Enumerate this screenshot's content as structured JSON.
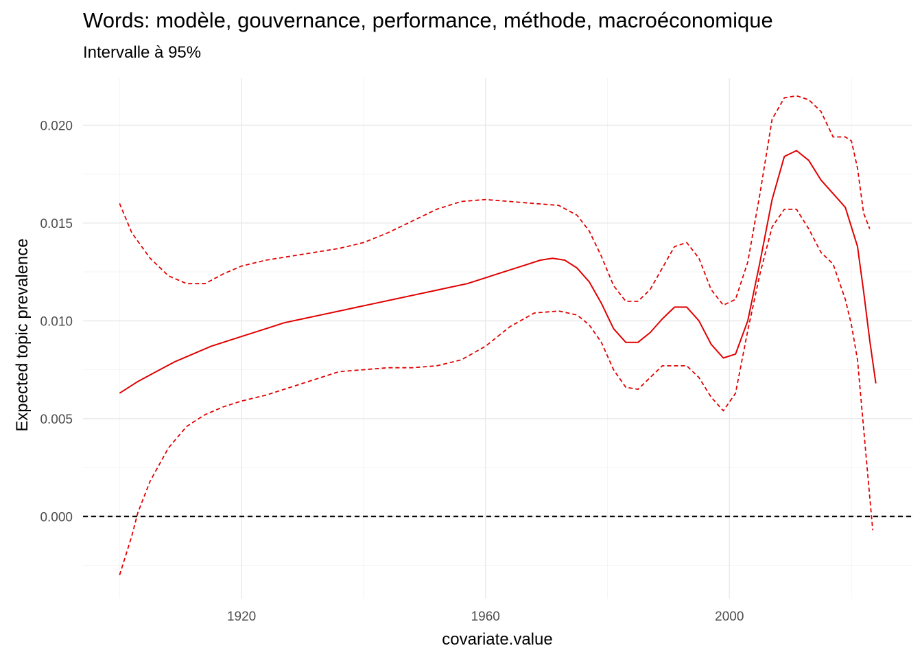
{
  "chart_data": {
    "type": "line",
    "title": "Words: modèle, gouvernance, performance, méthode, macroéconomique",
    "subtitle": "Intervalle à 95%",
    "xlabel": "covariate.value",
    "ylabel": "Expected topic prevalence",
    "xlim": [
      1894,
      2030
    ],
    "ylim": [
      -0.0042,
      0.0224
    ],
    "x_ticks": [
      1920,
      1960,
      2000
    ],
    "x_tick_labels": [
      "1920",
      "1960",
      "2000"
    ],
    "y_ticks": [
      0.0,
      0.005,
      0.01,
      0.015,
      0.02
    ],
    "y_tick_labels": [
      "0.000",
      "0.005",
      "0.010",
      "0.015",
      "0.020"
    ],
    "grid": true,
    "legend": "none",
    "reference_line": {
      "y": 0,
      "style": "dashed",
      "color": "#000000"
    },
    "color": "#e00000",
    "series": [
      {
        "style": "solid",
        "x": [
          1900,
          1903,
          1906,
          1909,
          1912,
          1915,
          1918,
          1921,
          1924,
          1927,
          1930,
          1933,
          1936,
          1939,
          1942,
          1945,
          1948,
          1951,
          1954,
          1957,
          1960,
          1963,
          1966,
          1969,
          1971,
          1973,
          1975,
          1977,
          1979,
          1981,
          1983,
          1985,
          1987,
          1989,
          1991,
          1993,
          1995,
          1997,
          1999,
          2001,
          2003,
          2005,
          2007,
          2009,
          2011,
          2013,
          2015,
          2017,
          2019,
          2021,
          2022,
          2023,
          2024
        ],
        "values": [
          0.0063,
          0.0069,
          0.0074,
          0.0079,
          0.0083,
          0.0087,
          0.009,
          0.0093,
          0.0096,
          0.0099,
          0.0101,
          0.0103,
          0.0105,
          0.0107,
          0.0109,
          0.0111,
          0.0113,
          0.0115,
          0.0117,
          0.0119,
          0.0122,
          0.0125,
          0.0128,
          0.0131,
          0.0132,
          0.0131,
          0.0127,
          0.012,
          0.0109,
          0.0096,
          0.0089,
          0.0089,
          0.0094,
          0.0101,
          0.0107,
          0.0107,
          0.01,
          0.0088,
          0.0081,
          0.0083,
          0.01,
          0.013,
          0.0162,
          0.0184,
          0.0187,
          0.0182,
          0.0172,
          0.0165,
          0.0158,
          0.0138,
          0.0115,
          0.009,
          0.0068
        ]
      },
      {
        "style": "dashed",
        "x": [
          1900,
          1902,
          1905,
          1908,
          1911,
          1914,
          1917,
          1920,
          1924,
          1928,
          1932,
          1936,
          1940,
          1944,
          1948,
          1952,
          1956,
          1960,
          1964,
          1968,
          1972,
          1975,
          1977,
          1979,
          1981,
          1983,
          1985,
          1987,
          1989,
          1991,
          1993,
          1995,
          1997,
          1999,
          2001,
          2003,
          2005,
          2007,
          2009,
          2011,
          2013,
          2015,
          2017,
          2019,
          2020,
          2021,
          2022,
          2023
        ],
        "values": [
          0.016,
          0.0145,
          0.0132,
          0.0123,
          0.0119,
          0.0119,
          0.0124,
          0.0128,
          0.0131,
          0.0133,
          0.0135,
          0.0137,
          0.014,
          0.0145,
          0.0151,
          0.0157,
          0.0161,
          0.0162,
          0.0161,
          0.016,
          0.0159,
          0.0154,
          0.0146,
          0.0133,
          0.0118,
          0.011,
          0.011,
          0.0116,
          0.0127,
          0.0138,
          0.014,
          0.0132,
          0.0116,
          0.0108,
          0.0111,
          0.013,
          0.0165,
          0.0203,
          0.0214,
          0.0215,
          0.0213,
          0.0207,
          0.0194,
          0.0194,
          0.0192,
          0.0178,
          0.0155,
          0.0147
        ]
      },
      {
        "style": "dashed",
        "x": [
          1900,
          1902,
          1903,
          1905,
          1908,
          1911,
          1914,
          1917,
          1920,
          1924,
          1928,
          1932,
          1936,
          1940,
          1944,
          1948,
          1952,
          1956,
          1960,
          1964,
          1968,
          1972,
          1975,
          1977,
          1979,
          1981,
          1983,
          1985,
          1987,
          1989,
          1991,
          1993,
          1995,
          1997,
          1999,
          2001,
          2003,
          2005,
          2007,
          2009,
          2011,
          2013,
          2015,
          2017,
          2019,
          2020,
          2021,
          2022,
          2023,
          2023.5
        ],
        "values": [
          -0.003,
          -0.001,
          0.0002,
          0.0018,
          0.0035,
          0.0046,
          0.0052,
          0.0056,
          0.0059,
          0.0062,
          0.0066,
          0.007,
          0.0074,
          0.0075,
          0.0076,
          0.0076,
          0.0077,
          0.008,
          0.0087,
          0.0097,
          0.0104,
          0.0105,
          0.0103,
          0.0098,
          0.0089,
          0.0075,
          0.0066,
          0.0065,
          0.0071,
          0.0077,
          0.0077,
          0.0077,
          0.0071,
          0.0061,
          0.0054,
          0.0063,
          0.0095,
          0.0124,
          0.0148,
          0.0157,
          0.0157,
          0.0147,
          0.0135,
          0.0129,
          0.0111,
          0.0098,
          0.008,
          0.0045,
          0.001,
          -0.0007
        ]
      }
    ]
  }
}
